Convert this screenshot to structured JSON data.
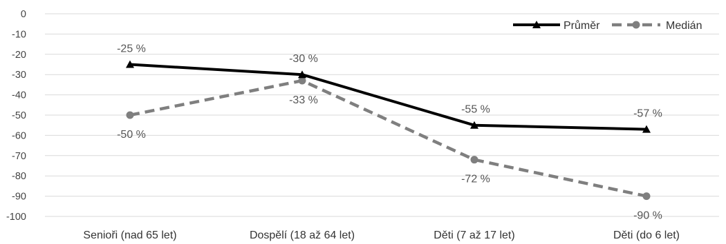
{
  "chart_data": {
    "type": "line",
    "categories": [
      "Senioři (nad 65 let)",
      "Dospělí (18 až 64 let)",
      "Děti (7 až 17 let)",
      "Děti (do 6 let)"
    ],
    "series": [
      {
        "name": "Průměr",
        "values": [
          -25,
          -30,
          -55,
          -57
        ],
        "labels": [
          "-25 %",
          "-30 %",
          "-55 %",
          "-57 %"
        ],
        "color": "#000000",
        "line_style": "solid",
        "marker": "triangle",
        "label_position": [
          "above",
          "above",
          "above",
          "above"
        ]
      },
      {
        "name": "Medián",
        "values": [
          -50,
          -33,
          -72,
          -90
        ],
        "labels": [
          "-50 %",
          "-33 %",
          "-72 %",
          "-90 %"
        ],
        "color": "#7f7f7f",
        "line_style": "dashed",
        "marker": "circle",
        "label_position": [
          "below",
          "below",
          "below",
          "below"
        ]
      }
    ],
    "ylim": [
      -100,
      0
    ],
    "yticks": [
      0,
      -10,
      -20,
      -30,
      -40,
      -50,
      -60,
      -70,
      -80,
      -90,
      -100
    ],
    "grid": true,
    "legend_position": "top-right",
    "title": "",
    "xlabel": "",
    "ylabel": ""
  }
}
